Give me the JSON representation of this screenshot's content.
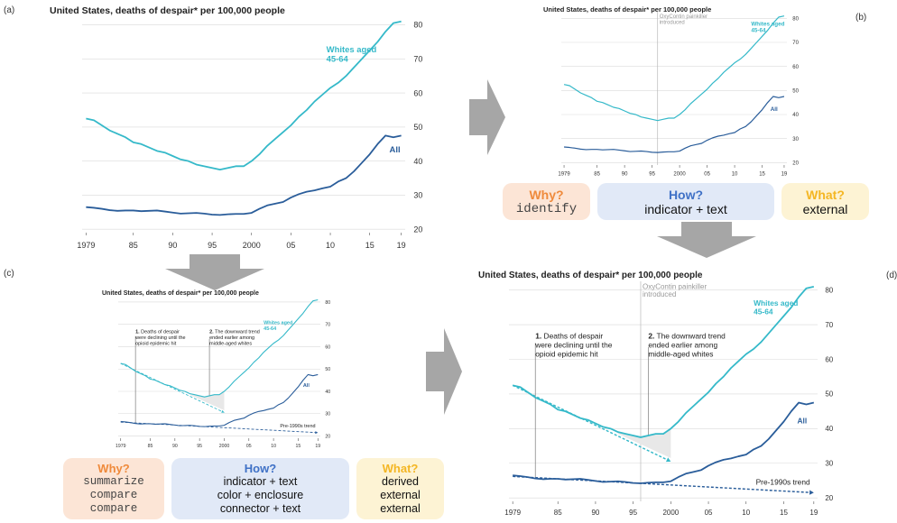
{
  "panels": {
    "a": {
      "label": "(a)",
      "title": "United States, deaths of despair* per 100,000 people"
    },
    "b": {
      "label": "(b)",
      "title": "United States, deaths of despair* per 100,000 people"
    },
    "c": {
      "label": "(c)",
      "title": "United States, deaths of despair* per 100,000 people"
    },
    "d": {
      "label": "(d)",
      "title": "United States, deaths of despair* per 100,000 people"
    }
  },
  "chart_data": {
    "type": "line",
    "x": [
      1979,
      1980,
      1981,
      1982,
      1983,
      1984,
      1985,
      1986,
      1987,
      1988,
      1989,
      1990,
      1991,
      1992,
      1993,
      1994,
      1995,
      1996,
      1997,
      1998,
      1999,
      2000,
      2001,
      2002,
      2003,
      2004,
      2005,
      2006,
      2007,
      2008,
      2009,
      2010,
      2011,
      2012,
      2013,
      2014,
      2015,
      2016,
      2017,
      2018,
      2019
    ],
    "series": [
      {
        "name": "Whites aged 45-64",
        "color": "#35b9c9",
        "values": [
          52.5,
          52,
          50.5,
          49,
          48,
          47,
          45.5,
          45,
          44,
          43,
          42.5,
          41.5,
          40.5,
          40,
          39,
          38.5,
          38,
          37.5,
          38,
          38.5,
          38.5,
          40,
          42,
          44.5,
          46.5,
          48.5,
          50.5,
          53,
          55,
          57.5,
          59.5,
          61.5,
          63,
          65,
          67.5,
          70,
          72.5,
          75,
          78,
          80.5,
          81
        ]
      },
      {
        "name": "All",
        "color": "#2a5d9a",
        "values": [
          26.5,
          26.3,
          26,
          25.6,
          25.4,
          25.5,
          25.5,
          25.3,
          25.4,
          25.5,
          25.2,
          24.9,
          24.6,
          24.7,
          24.8,
          24.6,
          24.3,
          24.2,
          24.4,
          24.5,
          24.5,
          24.8,
          26,
          27,
          27.5,
          28,
          29.3,
          30.3,
          31,
          31.4,
          32,
          32.5,
          34,
          35,
          37,
          39.5,
          42,
          45,
          47.5,
          47,
          47.5
        ]
      }
    ],
    "x_ticks": [
      "1979",
      "85",
      "90",
      "95",
      "2000",
      "05",
      "10",
      "15",
      "19"
    ],
    "x_tick_values": [
      1979,
      1985,
      1990,
      1995,
      2000,
      2005,
      2010,
      2015,
      2019
    ],
    "y_ticks": [
      "20",
      "30",
      "40",
      "50",
      "60",
      "70",
      "80"
    ],
    "y_tick_values": [
      20,
      30,
      40,
      50,
      60,
      70,
      80
    ],
    "ylim": [
      19,
      82
    ],
    "xlim": [
      1978.5,
      2019.5
    ],
    "annotations": {
      "oxycontin": "OxyContin painkiller introduced",
      "note1_bold": "1.",
      "note1": "Deaths of despair were declining until the opioid epidemic hit",
      "note2_bold": "2.",
      "note2": "The downward trend ended earlier among middle-aged whites",
      "pre1990": "Pre-1990s trend",
      "whites_label": "Whites aged 45-64",
      "all_label": "All"
    },
    "colors": {
      "whites": "#35b9c9",
      "all": "#2a5d9a",
      "grid": "#d9d9d9",
      "annot": "#9a9a9a"
    }
  },
  "cards": {
    "b": {
      "why": {
        "title": "Why?",
        "items": [
          "identify"
        ]
      },
      "how": {
        "title": "How?",
        "items": [
          "indicator + text"
        ]
      },
      "what": {
        "title": "What?",
        "items": [
          "external"
        ]
      }
    },
    "c": {
      "why": {
        "title": "Why?",
        "items": [
          "summarize",
          "compare",
          "compare"
        ]
      },
      "how": {
        "title": "How?",
        "items": [
          "indicator + text",
          "color + enclosure",
          "connector + text"
        ]
      },
      "what": {
        "title": "What?",
        "items": [
          "derived",
          "external",
          "external"
        ]
      }
    }
  }
}
